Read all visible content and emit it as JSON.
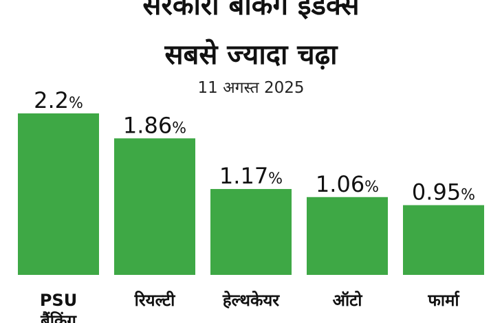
{
  "title_lines": [
    "सरकारी बैंकिंग इंडेक्स",
    "सबसे ज्यादा चढ़ा"
  ],
  "subtitle": "11 अगस्त 2025",
  "colors": {
    "bar": "#3ea845",
    "text": "#111111"
  },
  "chart_data": {
    "type": "bar",
    "title": "सरकारी बैंकिंग इंडेक्स सबसे ज्यादा चढ़ा",
    "subtitle": "11 अगस्त 2025",
    "categories": [
      [
        "PSU",
        "बैंकिंग"
      ],
      [
        "रियल्टी"
      ],
      [
        "हेल्थकेयर"
      ],
      [
        "ऑटो"
      ],
      [
        "फार्मा"
      ]
    ],
    "values": [
      2.2,
      1.86,
      1.17,
      1.06,
      0.95
    ],
    "value_labels": [
      "2.2",
      "1.86",
      "1.17",
      "1.06",
      "0.95"
    ],
    "unit": "%",
    "xlabel": "",
    "ylabel": "",
    "ylim": [
      0,
      2.2
    ],
    "grid": false,
    "legend": false
  }
}
